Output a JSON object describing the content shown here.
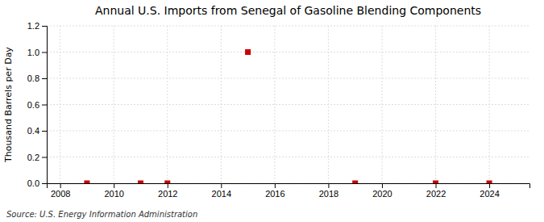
{
  "chart_data": {
    "type": "scatter",
    "title": "Annual U.S. Imports from Senegal of Gasoline Blending Components",
    "ylabel": "Thousand Barrels per Day",
    "source": "Source: U.S. Energy Information Administration",
    "x": [
      2009,
      2011,
      2012,
      2015,
      2019,
      2022,
      2024
    ],
    "values": [
      0.0,
      0.0,
      0.0,
      1.0,
      0.0,
      0.0,
      0.0
    ],
    "xlim": [
      2007.5,
      2025.5
    ],
    "ylim": [
      0.0,
      1.2
    ],
    "xticks": [
      2008,
      2010,
      2012,
      2014,
      2016,
      2018,
      2020,
      2022,
      2024
    ],
    "yticks": [
      {
        "value": 0,
        "label": "0.0"
      },
      0.2,
      0.4,
      0.6,
      0.8,
      {
        "value": 1,
        "label": "1.0"
      },
      1.2
    ],
    "color": "#cc0000",
    "marker": "square",
    "grid": true
  }
}
